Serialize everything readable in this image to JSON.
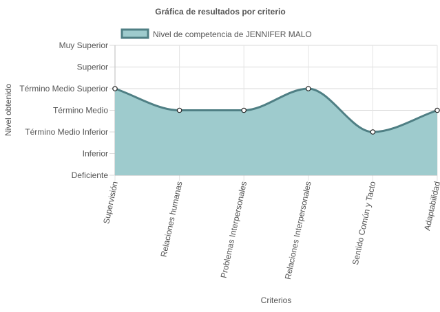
{
  "chart_data": {
    "type": "area",
    "title": "Gráfica de resultados por criterio",
    "xlabel": "Criterios",
    "ylabel": "Nivel obtenido",
    "categories": [
      "Supervisión",
      "Relaciones humanas",
      "Problemas Interpersonales",
      "Relaciones Interpersonales",
      "Sentido Común y Tacto",
      "Adaptabilidad"
    ],
    "y_levels": [
      "Deficiente",
      "Inferior",
      "Término Medio Inferior",
      "Término Medio",
      "Término Medio Superior",
      "Superior",
      "Muy Superior"
    ],
    "ylim": [
      1,
      7
    ],
    "grid": true,
    "legend_position": "top",
    "series": [
      {
        "name": "Nivel de competencia de JENNIFER MALO",
        "values": [
          5,
          4,
          4,
          5,
          3,
          4
        ],
        "fill_color": "#9ecbcd",
        "line_color": "#4f7f84"
      }
    ]
  }
}
